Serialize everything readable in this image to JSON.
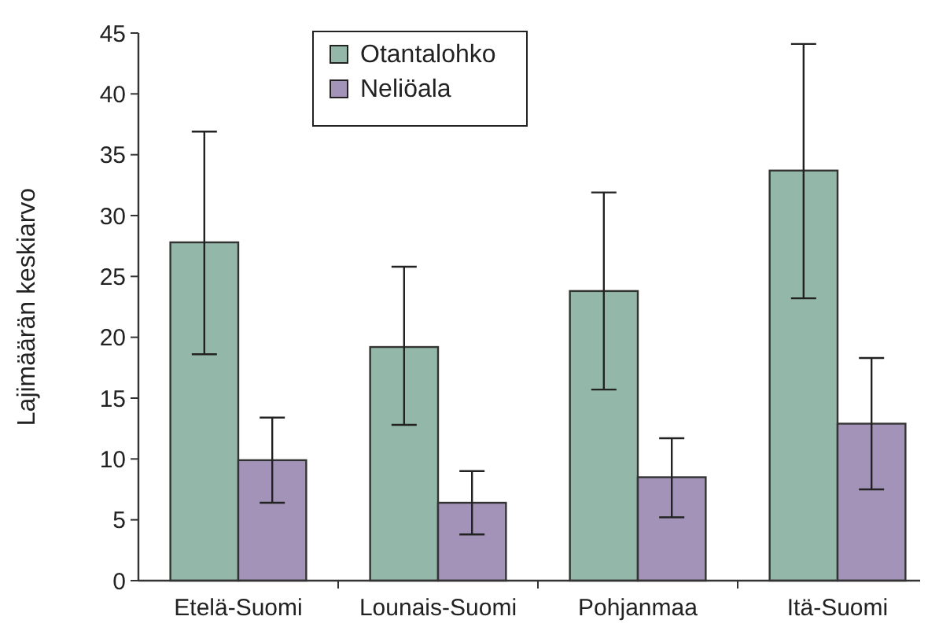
{
  "chart_data": {
    "type": "bar",
    "ylabel": "Lajimäärän keskiarvo",
    "categories": [
      "Etelä-Suomi",
      "Lounais-Suomi",
      "Pohjanmaa",
      "Itä-Suomi"
    ],
    "series": [
      {
        "name": "Otantalohko",
        "color": "#93b8aa",
        "values": [
          27.8,
          19.2,
          23.8,
          33.7
        ],
        "errors": [
          [
            18.6,
            36.9
          ],
          [
            12.8,
            25.8
          ],
          [
            15.7,
            31.9
          ],
          [
            23.2,
            44.1
          ]
        ]
      },
      {
        "name": "Neliöala",
        "color": "#a393b8",
        "values": [
          9.9,
          6.4,
          8.5,
          12.9
        ],
        "errors": [
          [
            6.4,
            13.4
          ],
          [
            3.8,
            9.0
          ],
          [
            5.2,
            11.7
          ],
          [
            7.5,
            18.3
          ]
        ]
      }
    ],
    "ylim": [
      0,
      45
    ],
    "yticks": [
      0,
      5,
      10,
      15,
      20,
      25,
      30,
      35,
      40,
      45
    ],
    "grid": false,
    "legend": "top"
  }
}
